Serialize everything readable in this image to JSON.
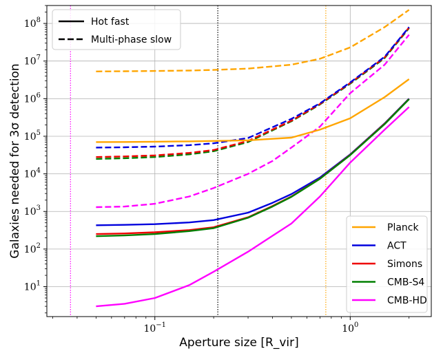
{
  "chart_data": {
    "type": "line",
    "xlabel": "Aperture size [R_vir]",
    "ylabel": "Galaxies needed for 3σ detection",
    "xscale": "log",
    "yscale": "log",
    "xlim": [
      0.028,
      2.6
    ],
    "ylim": [
      1.6,
      300000000
    ],
    "x_ticks": [
      {
        "value": 0.1,
        "mant": "10",
        "exp": "−1"
      },
      {
        "value": 1,
        "mant": "10",
        "exp": "0"
      }
    ],
    "y_ticks": [
      {
        "value": 10,
        "mant": "10",
        "exp": "1"
      },
      {
        "value": 100,
        "mant": "10",
        "exp": "2"
      },
      {
        "value": 1000,
        "mant": "10",
        "exp": "3"
      },
      {
        "value": 10000,
        "mant": "10",
        "exp": "4"
      },
      {
        "value": 100000,
        "mant": "10",
        "exp": "5"
      },
      {
        "value": 1000000,
        "mant": "10",
        "exp": "6"
      },
      {
        "value": 10000000,
        "mant": "10",
        "exp": "7"
      },
      {
        "value": 100000000,
        "mant": "10",
        "exp": "8"
      }
    ],
    "grid": true,
    "vlines": [
      {
        "x": 0.037,
        "color": "#ff00ff"
      },
      {
        "x": 0.21,
        "color": "#000000"
      },
      {
        "x": 0.75,
        "color": "#ffa500"
      }
    ],
    "legend_style": {
      "placement": "top-left",
      "entries": [
        {
          "label": "Hot fast",
          "dash": "solid"
        },
        {
          "label": "Multi-phase slow",
          "dash": "dashed"
        }
      ]
    },
    "legend_experiments": {
      "placement": "bottom-right",
      "entries": [
        {
          "label": "Planck",
          "color": "#ffa500"
        },
        {
          "label": "ACT",
          "color": "#0000dd"
        },
        {
          "label": "Simons",
          "color": "#ee0000"
        },
        {
          "label": "CMB-S4",
          "color": "#007f00"
        },
        {
          "label": "CMB-HD",
          "color": "#ff00ff"
        }
      ]
    },
    "series": [
      {
        "experiment": "CMB-HD",
        "style": "dashed",
        "color": "#ff00ff",
        "points": [
          [
            0.05,
            1300
          ],
          [
            0.07,
            1350
          ],
          [
            0.1,
            1600
          ],
          [
            0.15,
            2500
          ],
          [
            0.2,
            4200
          ],
          [
            0.3,
            10000
          ],
          [
            0.4,
            22000
          ],
          [
            0.5,
            50000
          ],
          [
            0.7,
            180000
          ],
          [
            1.0,
            1400000
          ],
          [
            1.5,
            8000000
          ],
          [
            2.0,
            50000000
          ]
        ]
      },
      {
        "experiment": "CMB-S4",
        "style": "dashed",
        "color": "#007f00",
        "points": [
          [
            0.05,
            25000
          ],
          [
            0.07,
            26000
          ],
          [
            0.1,
            28000
          ],
          [
            0.15,
            33000
          ],
          [
            0.2,
            40000
          ],
          [
            0.3,
            70000
          ],
          [
            0.5,
            250000
          ],
          [
            0.7,
            700000
          ],
          [
            1.0,
            2500000
          ],
          [
            1.5,
            12000000
          ],
          [
            2.0,
            75000000
          ]
        ]
      },
      {
        "experiment": "Simons",
        "style": "dashed",
        "color": "#ee0000",
        "points": [
          [
            0.05,
            28000
          ],
          [
            0.07,
            29000
          ],
          [
            0.1,
            31000
          ],
          [
            0.15,
            36000
          ],
          [
            0.2,
            43000
          ],
          [
            0.3,
            75000
          ],
          [
            0.5,
            260000
          ],
          [
            0.7,
            720000
          ],
          [
            1.0,
            2600000
          ],
          [
            1.5,
            12500000
          ],
          [
            2.0,
            78000000
          ]
        ]
      },
      {
        "experiment": "ACT",
        "style": "dashed",
        "color": "#0000dd",
        "points": [
          [
            0.05,
            50000
          ],
          [
            0.07,
            51000
          ],
          [
            0.1,
            53000
          ],
          [
            0.15,
            58000
          ],
          [
            0.2,
            65000
          ],
          [
            0.3,
            90000
          ],
          [
            0.5,
            290000
          ],
          [
            0.7,
            750000
          ],
          [
            1.0,
            2700000
          ],
          [
            1.5,
            13000000
          ],
          [
            2.0,
            80000000
          ]
        ]
      },
      {
        "experiment": "Planck",
        "style": "dashed",
        "color": "#ffa500",
        "points": [
          [
            0.05,
            5300000
          ],
          [
            0.07,
            5350000
          ],
          [
            0.1,
            5450000
          ],
          [
            0.15,
            5600000
          ],
          [
            0.2,
            5800000
          ],
          [
            0.3,
            6300000
          ],
          [
            0.5,
            8000000
          ],
          [
            0.7,
            11500000
          ],
          [
            1.0,
            23000000
          ],
          [
            1.5,
            80000000
          ],
          [
            2.0,
            230000000
          ]
        ]
      },
      {
        "experiment": "Planck",
        "style": "solid",
        "color": "#ffa500",
        "points": [
          [
            0.05,
            70000
          ],
          [
            0.07,
            70500
          ],
          [
            0.1,
            71500
          ],
          [
            0.15,
            73000
          ],
          [
            0.2,
            75000
          ],
          [
            0.3,
            78000
          ],
          [
            0.5,
            92000
          ],
          [
            0.7,
            150000
          ],
          [
            1.0,
            300000
          ],
          [
            1.5,
            1100000
          ],
          [
            2.0,
            3300000
          ]
        ]
      },
      {
        "experiment": "ACT",
        "style": "solid",
        "color": "#0000dd",
        "points": [
          [
            0.05,
            430
          ],
          [
            0.07,
            440
          ],
          [
            0.1,
            460
          ],
          [
            0.15,
            510
          ],
          [
            0.2,
            590
          ],
          [
            0.3,
            930
          ],
          [
            0.4,
            1700
          ],
          [
            0.5,
            2900
          ],
          [
            0.7,
            8000
          ],
          [
            1.0,
            33000
          ],
          [
            1.5,
            220000
          ],
          [
            2.0,
            1000000
          ]
        ]
      },
      {
        "experiment": "Simons",
        "style": "solid",
        "color": "#ee0000",
        "points": [
          [
            0.05,
            250
          ],
          [
            0.07,
            260
          ],
          [
            0.1,
            280
          ],
          [
            0.15,
            320
          ],
          [
            0.2,
            380
          ],
          [
            0.3,
            700
          ],
          [
            0.4,
            1400
          ],
          [
            0.5,
            2500
          ],
          [
            0.7,
            7500
          ],
          [
            1.0,
            32000
          ],
          [
            1.5,
            215000
          ],
          [
            2.0,
            980000
          ]
        ]
      },
      {
        "experiment": "CMB-S4",
        "style": "solid",
        "color": "#007f00",
        "points": [
          [
            0.05,
            220
          ],
          [
            0.07,
            230
          ],
          [
            0.1,
            250
          ],
          [
            0.15,
            300
          ],
          [
            0.2,
            360
          ],
          [
            0.3,
            680
          ],
          [
            0.4,
            1350
          ],
          [
            0.5,
            2450
          ],
          [
            0.7,
            7400
          ],
          [
            1.0,
            31500
          ],
          [
            1.5,
            210000
          ],
          [
            2.0,
            970000
          ]
        ]
      },
      {
        "experiment": "CMB-HD",
        "style": "solid",
        "color": "#ff00ff",
        "points": [
          [
            0.05,
            3
          ],
          [
            0.07,
            3.5
          ],
          [
            0.1,
            5
          ],
          [
            0.15,
            11
          ],
          [
            0.2,
            25
          ],
          [
            0.3,
            85
          ],
          [
            0.5,
            480
          ],
          [
            0.7,
            2500
          ],
          [
            1.0,
            20000
          ],
          [
            1.5,
            150000
          ],
          [
            2.0,
            600000
          ]
        ]
      }
    ]
  }
}
